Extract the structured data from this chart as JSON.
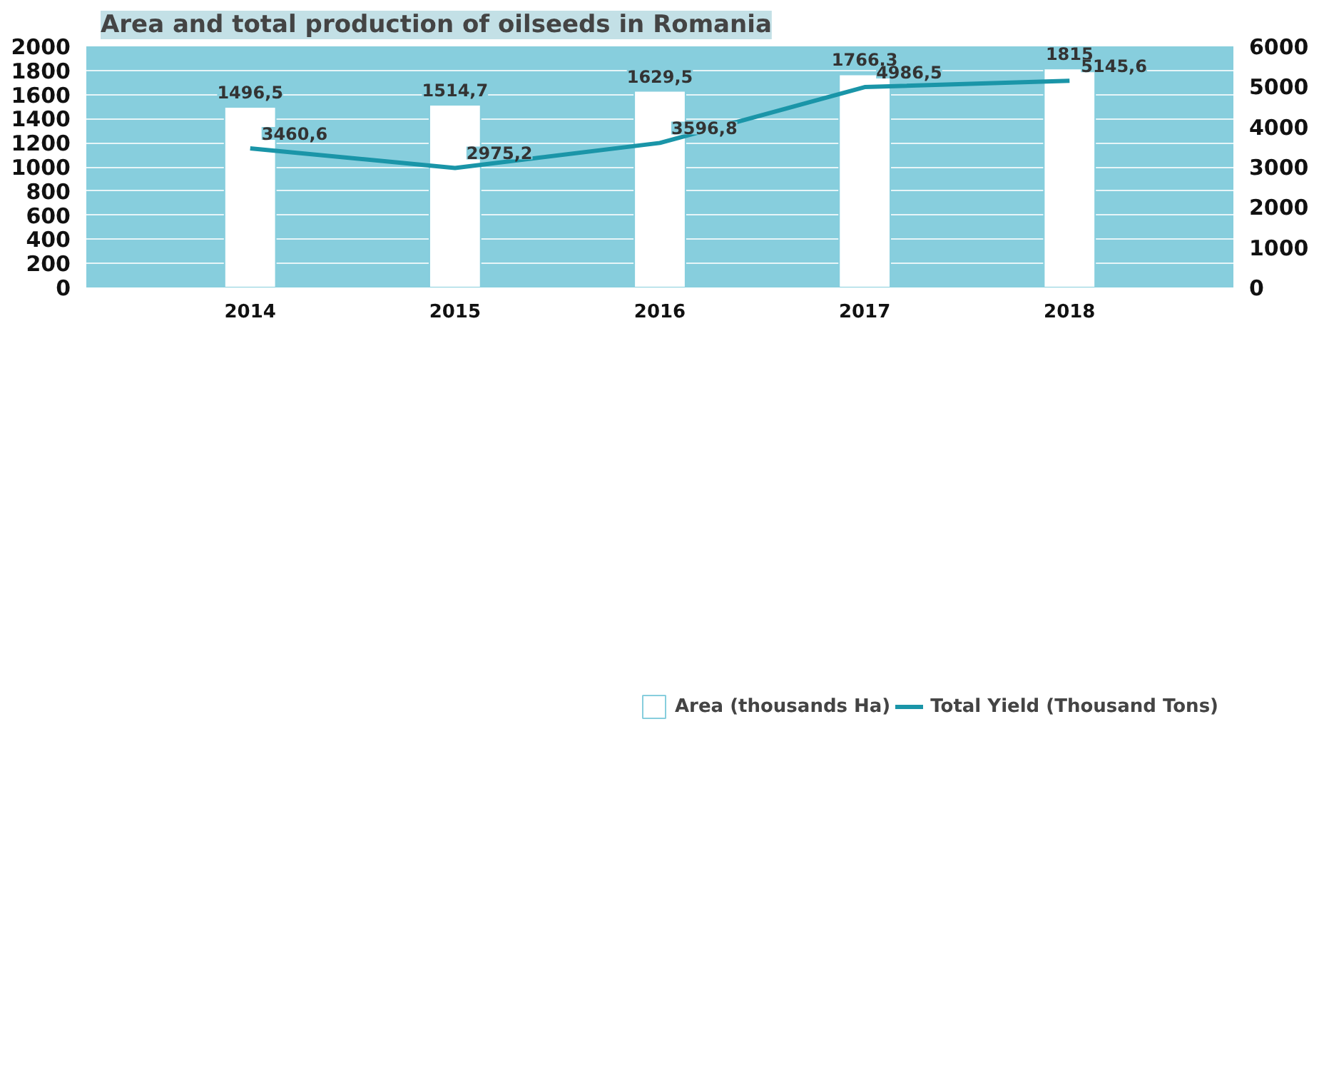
{
  "chart_data": {
    "type": "bar",
    "title": "Area and total production of oilseeds in Romania",
    "categories": [
      "2014",
      "2015",
      "2016",
      "2017",
      "2018"
    ],
    "series": [
      {
        "name": "Area (thousands Ha)",
        "color": "#ffffff",
        "values": [
          1496.5,
          1514.7,
          1629.5,
          1766.3,
          1815
        ],
        "value_labels": [
          "1496,5",
          "1514,7",
          "1629,5",
          "1766,3",
          "1815"
        ]
      },
      {
        "name": "Total Yield (Thousand Tons)",
        "type": "line",
        "axis": "y2",
        "color": "#1a95a8",
        "values": [
          3460.6,
          2975.2,
          3596.8,
          4986.5,
          5145.6
        ],
        "value_labels": [
          "3460,6",
          "2975,2",
          "3596,8",
          "4986,5",
          "5145,6"
        ]
      }
    ],
    "ylim": [
      0,
      2000
    ],
    "yticks": [
      0,
      200,
      400,
      600,
      800,
      1000,
      1200,
      1400,
      1600,
      1800,
      2000
    ],
    "y2lim": [
      0,
      6000
    ],
    "y2ticks": [
      0,
      1000,
      2000,
      3000,
      4000,
      5000,
      6000
    ],
    "grid": "y",
    "legend": "bottom"
  }
}
